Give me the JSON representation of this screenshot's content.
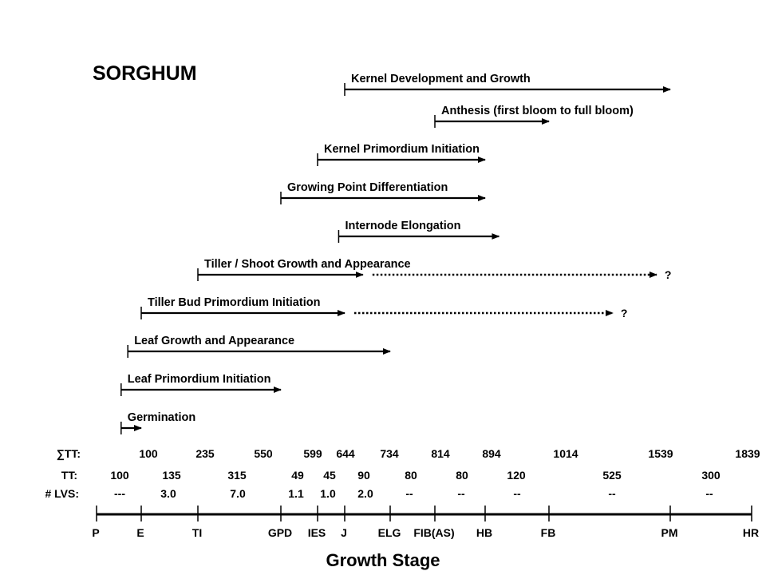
{
  "title": "SORGHUM",
  "x_axis_label": "Growth Stage",
  "row_labels": {
    "sum_tt": "∑TT:",
    "tt": "TT:",
    "lvs": "# LVS:"
  },
  "stages": [
    {
      "code": "P",
      "x": 0
    },
    {
      "code": "E",
      "x": 100
    },
    {
      "code": "TI",
      "x": 235
    },
    {
      "code": "GPD",
      "x": 550
    },
    {
      "code": "IES",
      "x": 599
    },
    {
      "code": "J",
      "x": 644
    },
    {
      "code": "ELG",
      "x": 734
    },
    {
      "code": "FIB(AS)",
      "x": 814
    },
    {
      "code": "HB",
      "x": 894
    },
    {
      "code": "FB",
      "x": 1014
    },
    {
      "code": "PM",
      "x": 1539
    },
    {
      "code": "HR",
      "x": 1839
    }
  ],
  "cumulative_tt": [
    "100",
    "235",
    "550",
    "599",
    "644",
    "734",
    "814",
    "894",
    "1014",
    "1539",
    "1839"
  ],
  "interval_tt": [
    "100",
    "135",
    "315",
    "49",
    "45",
    "90",
    "80",
    "80",
    "120",
    "525",
    "300"
  ],
  "interval_leaves": [
    "---",
    "3.0",
    "7.0",
    "1.1",
    "1.0",
    "2.0",
    "--",
    "--",
    "--",
    "--",
    "--"
  ],
  "processes": [
    {
      "label": "Kernel Development and Growth",
      "start": 644,
      "end": 1539
    },
    {
      "label": "Anthesis (first bloom to full bloom)",
      "start": 814,
      "end": 1014
    },
    {
      "label": "Kernel Primordium Initiation",
      "start": 599,
      "end": 894
    },
    {
      "label": "Growing Point Differentiation",
      "start": 550,
      "end": 894
    },
    {
      "label": "Internode Elongation",
      "start": 634,
      "end": 920
    },
    {
      "label": "Tiller / Shoot Growth and Appearance",
      "start": 235,
      "end": 680,
      "dotted_end": 1480,
      "uncertain": "?"
    },
    {
      "label": "Tiller Bud Primordium Initiation",
      "start": 100,
      "end": 644,
      "dotted_end": 1290,
      "uncertain": "?"
    },
    {
      "label": "Leaf Growth and Appearance",
      "start": 70,
      "end": 734
    },
    {
      "label": "Leaf Primordium Initiation",
      "start": 55,
      "end": 550
    },
    {
      "label": "Germination",
      "start": 55,
      "end": 100
    }
  ]
}
